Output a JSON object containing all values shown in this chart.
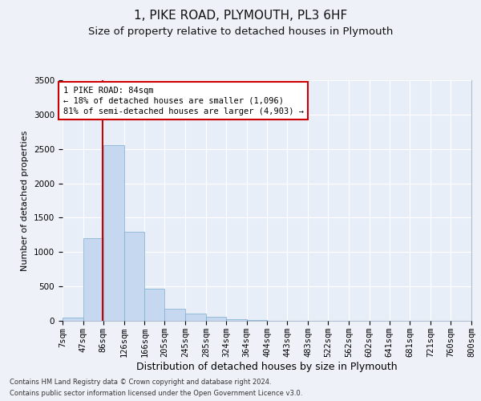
{
  "title1": "1, PIKE ROAD, PLYMOUTH, PL3 6HF",
  "title2": "Size of property relative to detached houses in Plymouth",
  "xlabel": "Distribution of detached houses by size in Plymouth",
  "ylabel": "Number of detached properties",
  "bin_labels": [
    "7sqm",
    "47sqm",
    "86sqm",
    "126sqm",
    "166sqm",
    "205sqm",
    "245sqm",
    "285sqm",
    "324sqm",
    "364sqm",
    "404sqm",
    "443sqm",
    "483sqm",
    "522sqm",
    "562sqm",
    "602sqm",
    "641sqm",
    "681sqm",
    "721sqm",
    "760sqm",
    "800sqm"
  ],
  "bin_edges": [
    7,
    47,
    86,
    126,
    166,
    205,
    245,
    285,
    324,
    364,
    404,
    443,
    483,
    522,
    562,
    602,
    641,
    681,
    721,
    760,
    800
  ],
  "bar_heights": [
    50,
    1200,
    2550,
    1300,
    470,
    175,
    100,
    55,
    25,
    12,
    5,
    5,
    3,
    2,
    2,
    1,
    1,
    0,
    0,
    0
  ],
  "bar_color": "#c5d8f0",
  "bar_edgecolor": "#7aaed0",
  "ylim": [
    0,
    3500
  ],
  "yticks": [
    0,
    500,
    1000,
    1500,
    2000,
    2500,
    3000,
    3500
  ],
  "property_size": 84,
  "vline_color": "#cc0000",
  "annotation_text": "1 PIKE ROAD: 84sqm\n← 18% of detached houses are smaller (1,096)\n81% of semi-detached houses are larger (4,903) →",
  "footer1": "Contains HM Land Registry data © Crown copyright and database right 2024.",
  "footer2": "Contains public sector information licensed under the Open Government Licence v3.0.",
  "background_color": "#eef2f8",
  "plot_background": "#e8eef8",
  "grid_color": "#ffffff",
  "title1_fontsize": 11,
  "title2_fontsize": 9.5,
  "xlabel_fontsize": 9,
  "ylabel_fontsize": 8,
  "tick_fontsize": 7.5,
  "annotation_fontsize": 7.5,
  "footer_fontsize": 6
}
